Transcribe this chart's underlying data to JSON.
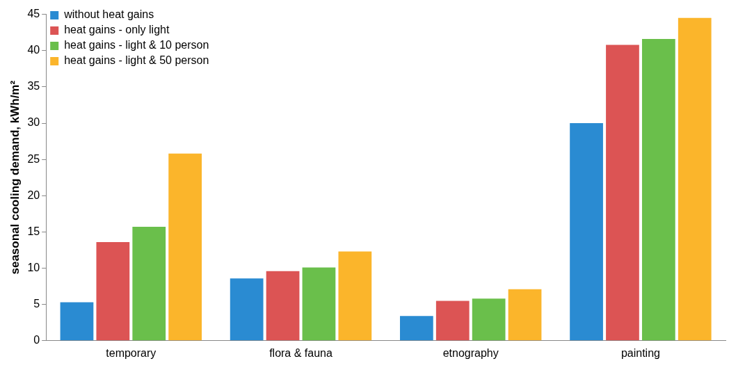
{
  "chart_data": {
    "type": "bar",
    "ylabel": "seasonal cooling demand, kWh/m²",
    "categories": [
      "temporary",
      "flora & fauna",
      "etnography",
      "painting"
    ],
    "series": [
      {
        "name": "without heat gains",
        "color": "#2a8bd2",
        "values": [
          5.3,
          8.6,
          3.4,
          30.0
        ]
      },
      {
        "name": "heat gains - only light",
        "color": "#dc5454",
        "values": [
          13.6,
          9.6,
          5.5,
          40.8
        ]
      },
      {
        "name": "heat gains - light & 10 person",
        "color": "#6abf4b",
        "values": [
          15.7,
          10.1,
          5.8,
          41.6
        ]
      },
      {
        "name": "heat gains - light & 50 person",
        "color": "#fbb52b",
        "values": [
          25.8,
          12.3,
          7.1,
          44.5
        ]
      }
    ],
    "ylim": [
      0,
      45
    ],
    "yticks": [
      0,
      5,
      10,
      15,
      20,
      25,
      30,
      35,
      40,
      45
    ],
    "grid": false,
    "legend": "top left"
  }
}
